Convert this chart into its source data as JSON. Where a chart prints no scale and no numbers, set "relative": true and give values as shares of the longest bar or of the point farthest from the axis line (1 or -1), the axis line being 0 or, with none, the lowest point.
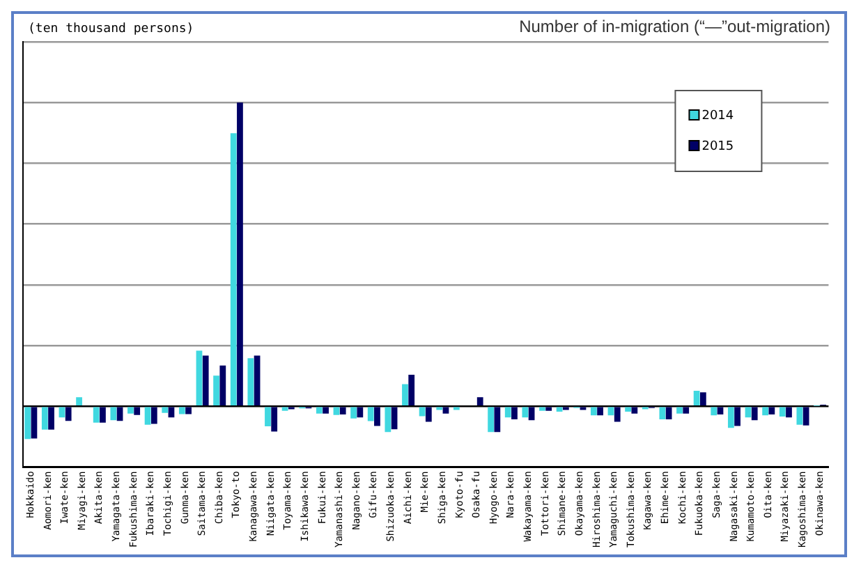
{
  "chart_data": {
    "type": "bar",
    "relative": true,
    "title": "Number of in-migration (“—”out-migration)",
    "annotations": [
      "(ten thousand persons)"
    ],
    "categories": [
      "Hokkaido",
      "Aomori-ken",
      "Iwate-ken",
      "Miyagi-ken",
      "Akita-ken",
      "Yamagata-ken",
      "Fukushima-ken",
      "Ibaraki-ken",
      "Tochigi-ken",
      "Gunma-ken",
      "Saitama-ken",
      "Chiba-ken",
      "Tokyo-to",
      "Kanagawa-ken",
      "Niigata-ken",
      "Toyama-ken",
      "Ishikawa-ken",
      "Fukui-ken",
      "Yamanashi-ken",
      "Nagano-ken",
      "Gifu-ken",
      "Shizuoka-ken",
      "Aichi-ken",
      "Mie-ken",
      "Shiga-ken",
      "Kyoto-fu",
      "Osaka-fu",
      "Hyogo-ken",
      "Nara-ken",
      "Wakayama-ken",
      "Tottori-ken",
      "Shimane-ken",
      "Okayama-ken",
      "Hiroshima-ken",
      "Yamaguchi-ken",
      "Tokushima-ken",
      "Kagawa-ken",
      "Ehime-ken",
      "Kochi-ken",
      "Fukuoka-ken",
      "Saga-ken",
      "Nagasaki-ken",
      "Kumamoto-ken",
      "Oita-ken",
      "Miyazaki-ken",
      "Kagoshima-ken",
      "Okinawa-ken"
    ],
    "series": [
      {
        "name": "2014",
        "color": "#40d8e0",
        "values": [
          -0.108,
          -0.077,
          -0.037,
          0.03,
          -0.054,
          -0.046,
          -0.024,
          -0.061,
          -0.022,
          -0.026,
          0.183,
          0.101,
          0.899,
          0.158,
          -0.066,
          -0.015,
          -0.007,
          -0.024,
          -0.029,
          -0.04,
          -0.049,
          -0.085,
          0.073,
          -0.033,
          -0.012,
          -0.012,
          null,
          -0.085,
          -0.037,
          -0.037,
          -0.015,
          -0.018,
          -0.006,
          -0.03,
          -0.03,
          -0.018,
          -0.01,
          -0.043,
          -0.024,
          0.051,
          -0.03,
          -0.071,
          -0.037,
          -0.03,
          -0.034,
          -0.061,
          0.001
        ]
      },
      {
        "name": "2015",
        "color": "#000066",
        "values": [
          -0.106,
          -0.077,
          -0.048,
          0,
          -0.054,
          -0.048,
          -0.029,
          -0.058,
          -0.037,
          -0.026,
          0.167,
          0.134,
          1,
          0.167,
          -0.083,
          -0.01,
          -0.007,
          -0.024,
          -0.027,
          -0.037,
          -0.065,
          -0.076,
          0.104,
          -0.051,
          -0.024,
          0,
          0.03,
          -0.085,
          -0.043,
          -0.046,
          -0.015,
          -0.012,
          -0.012,
          -0.03,
          -0.051,
          -0.024,
          -0.006,
          -0.043,
          -0.024,
          0.046,
          -0.027,
          -0.065,
          -0.046,
          -0.027,
          -0.037,
          -0.063,
          0.005
        ]
      }
    ],
    "grid": "y",
    "legend": "top right"
  }
}
